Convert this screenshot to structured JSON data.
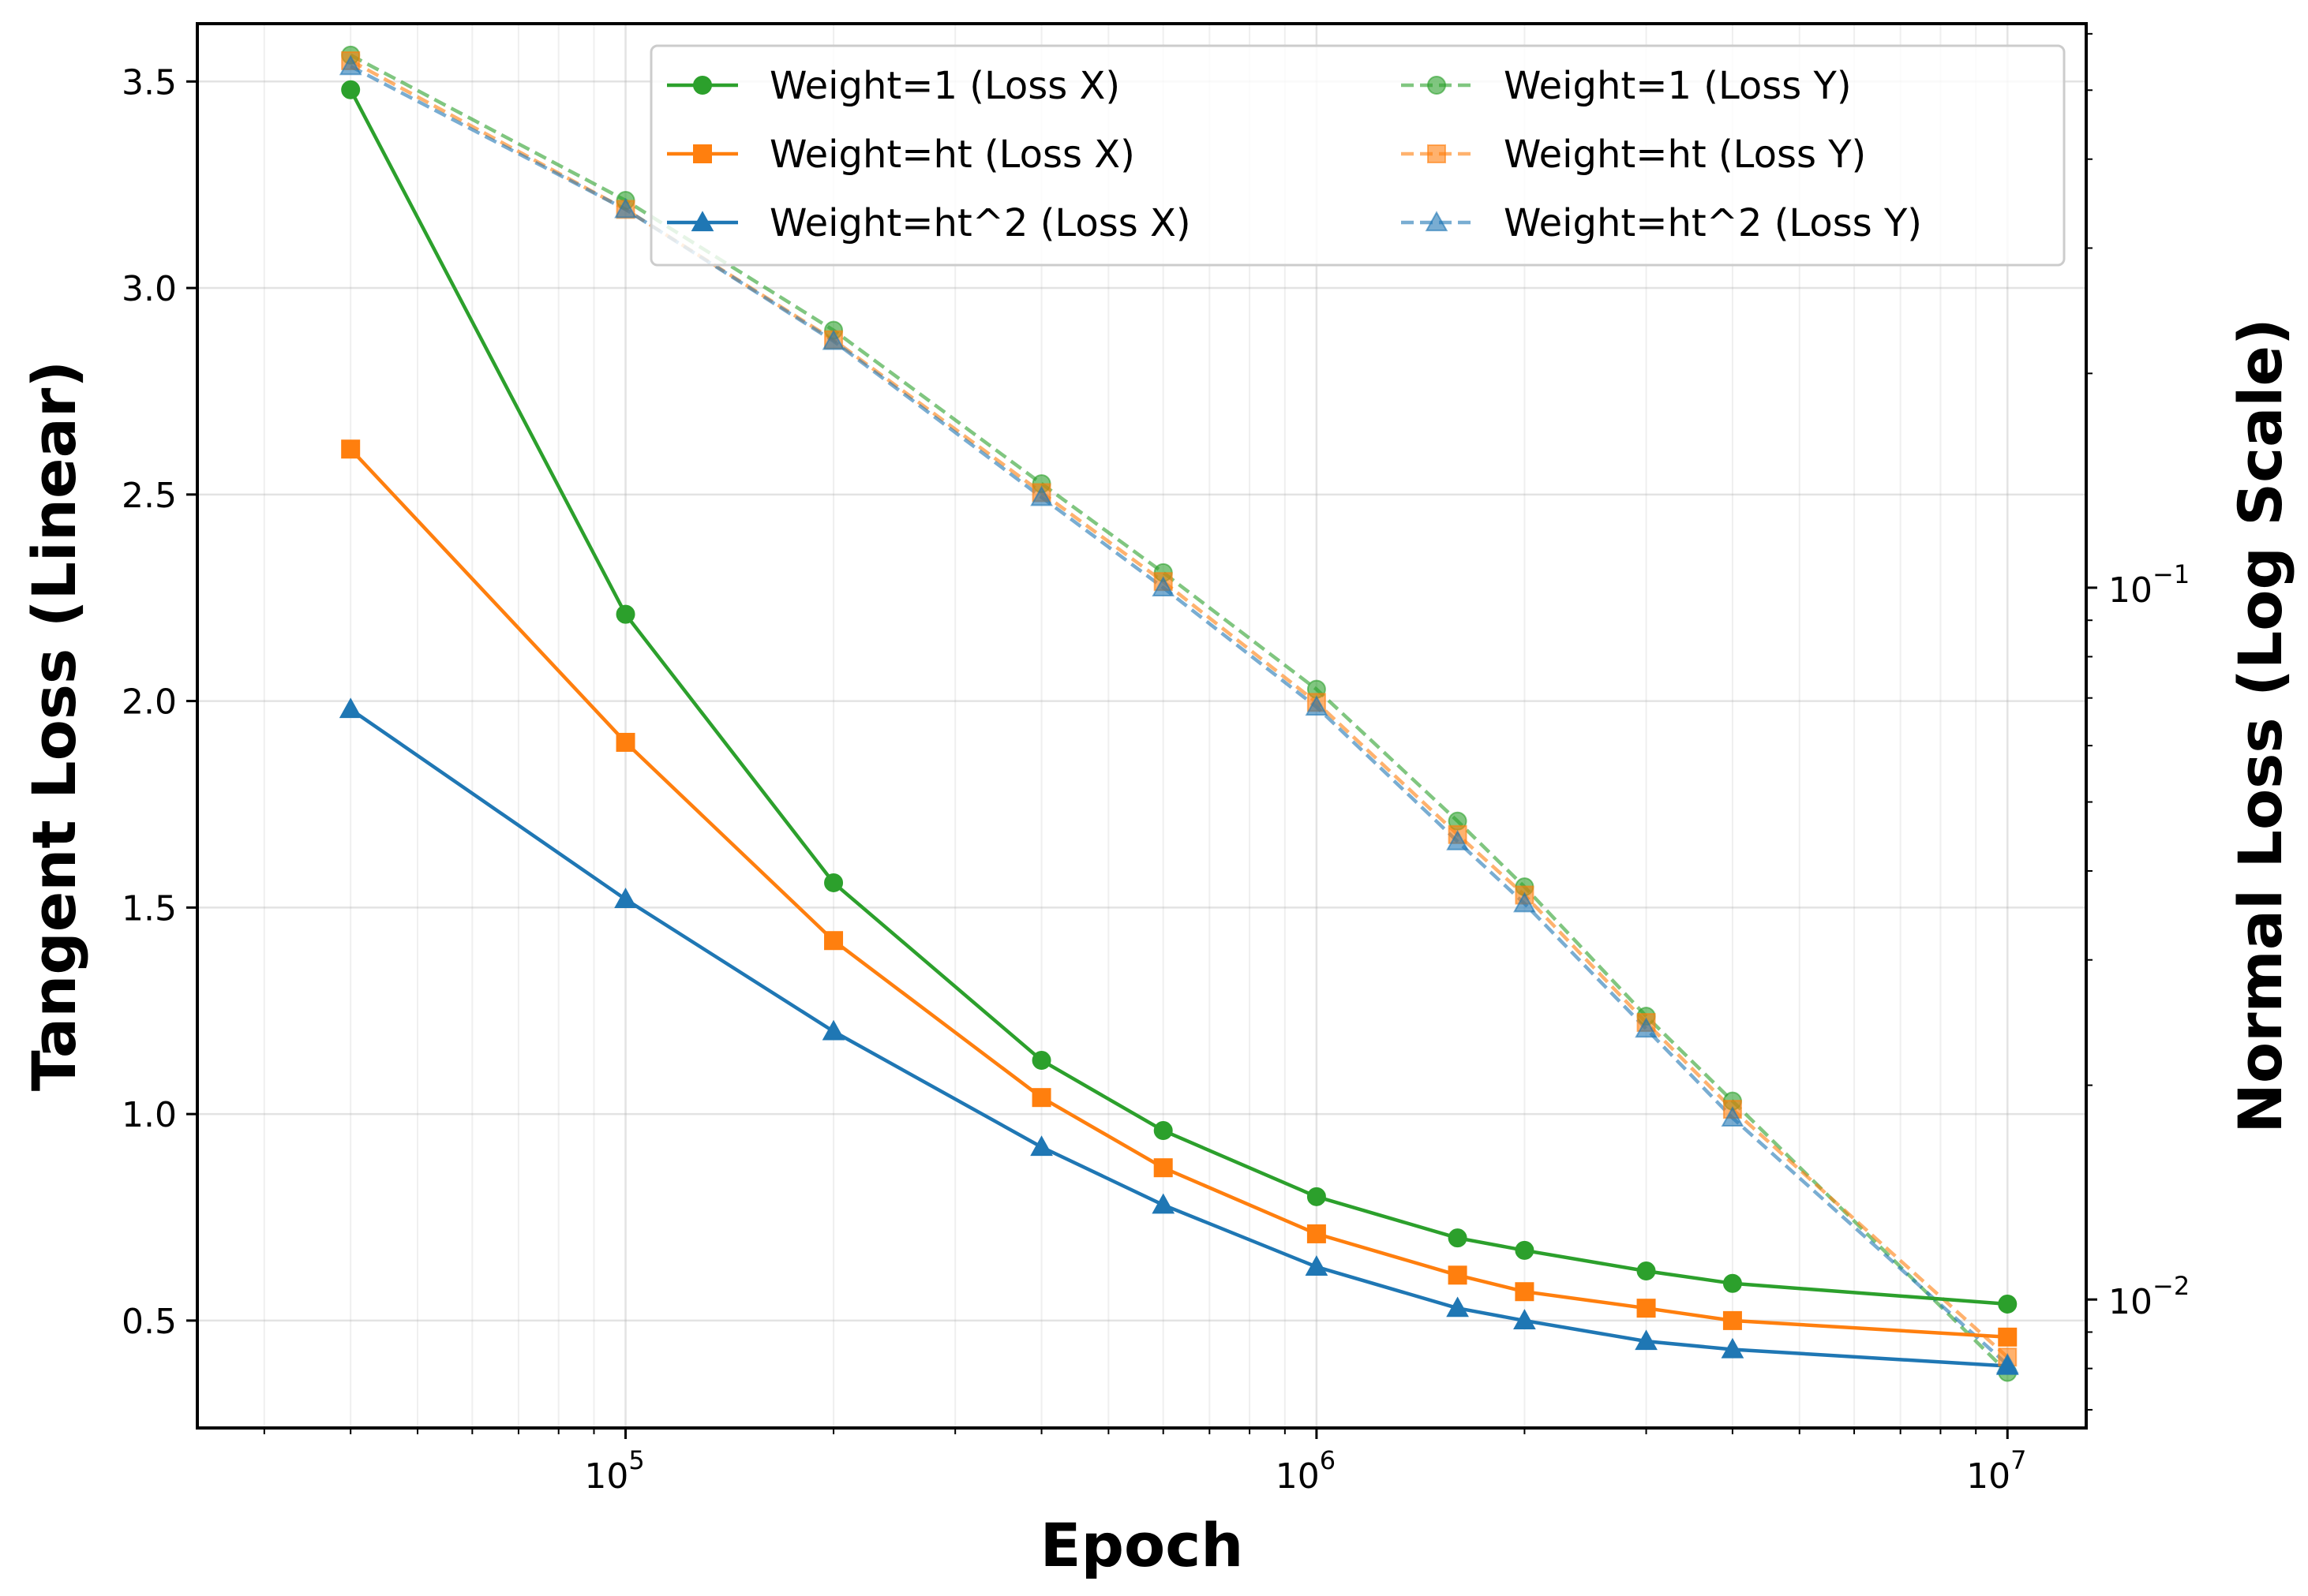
{
  "chart_data": {
    "type": "line",
    "x_scale": "log",
    "x": [
      40000,
      100000,
      200000,
      400000,
      600000,
      1000000,
      1600000,
      2000000,
      3000000,
      4000000,
      10000000
    ],
    "xlabel": "Epoch",
    "xlim": [
      24000,
      13000000
    ],
    "x_ticks": [
      {
        "value": 100000,
        "base": "10",
        "exp": "5"
      },
      {
        "value": 1000000,
        "base": "10",
        "exp": "6"
      },
      {
        "value": 10000000,
        "base": "10",
        "exp": "7"
      }
    ],
    "left_axis": {
      "label": "Tangent Loss (Linear)",
      "scale": "linear",
      "ylim": [
        0.24,
        3.64
      ],
      "ticks": [
        "0.5",
        "1.0",
        "1.5",
        "2.0",
        "2.5",
        "3.0",
        "3.5"
      ]
    },
    "right_axis": {
      "label": "Normal Loss (Log Scale)",
      "scale": "log",
      "ylim": [
        0.0066,
        0.62
      ],
      "ticks": [
        {
          "value": 0.1,
          "base": "10",
          "exp": "−1"
        },
        {
          "value": 0.01,
          "base": "10",
          "exp": "−2"
        }
      ]
    },
    "grid": true,
    "legend_position": "top-right",
    "series": [
      {
        "name": "Weight=1 (Loss X)",
        "axis": "left",
        "color": "#2ca02c",
        "marker": "circle",
        "dash": false,
        "values": [
          3.48,
          2.21,
          1.56,
          1.13,
          0.96,
          0.8,
          0.7,
          0.67,
          0.62,
          0.59,
          0.54
        ]
      },
      {
        "name": "Weight=ht (Loss X)",
        "axis": "left",
        "color": "#ff7f0e",
        "marker": "square",
        "dash": false,
        "values": [
          2.61,
          1.9,
          1.42,
          1.04,
          0.87,
          0.71,
          0.61,
          0.57,
          0.53,
          0.5,
          0.46
        ]
      },
      {
        "name": "Weight=ht^2 (Loss X)",
        "axis": "left",
        "color": "#1f77b4",
        "marker": "triangle",
        "dash": false,
        "values": [
          1.98,
          1.52,
          1.2,
          0.92,
          0.78,
          0.63,
          0.53,
          0.5,
          0.45,
          0.43,
          0.39
        ]
      },
      {
        "name": "Weight=1 (Loss Y)",
        "axis": "right",
        "color": "#2ca02c",
        "marker": "circle",
        "dash": true,
        "values": [
          0.56,
          0.35,
          0.23,
          0.14,
          0.105,
          0.072,
          0.047,
          0.038,
          0.025,
          0.019,
          0.0079
        ]
      },
      {
        "name": "Weight=ht (Loss Y)",
        "axis": "right",
        "color": "#ff7f0e",
        "marker": "square",
        "dash": true,
        "values": [
          0.55,
          0.34,
          0.223,
          0.136,
          0.102,
          0.069,
          0.045,
          0.037,
          0.0245,
          0.0185,
          0.0083
        ]
      },
      {
        "name": "Weight=ht^2 (Loss Y)",
        "axis": "right",
        "color": "#1f77b4",
        "marker": "triangle",
        "dash": true,
        "values": [
          0.54,
          0.34,
          0.222,
          0.134,
          0.1,
          0.068,
          0.044,
          0.036,
          0.024,
          0.018,
          0.0081
        ]
      }
    ]
  }
}
